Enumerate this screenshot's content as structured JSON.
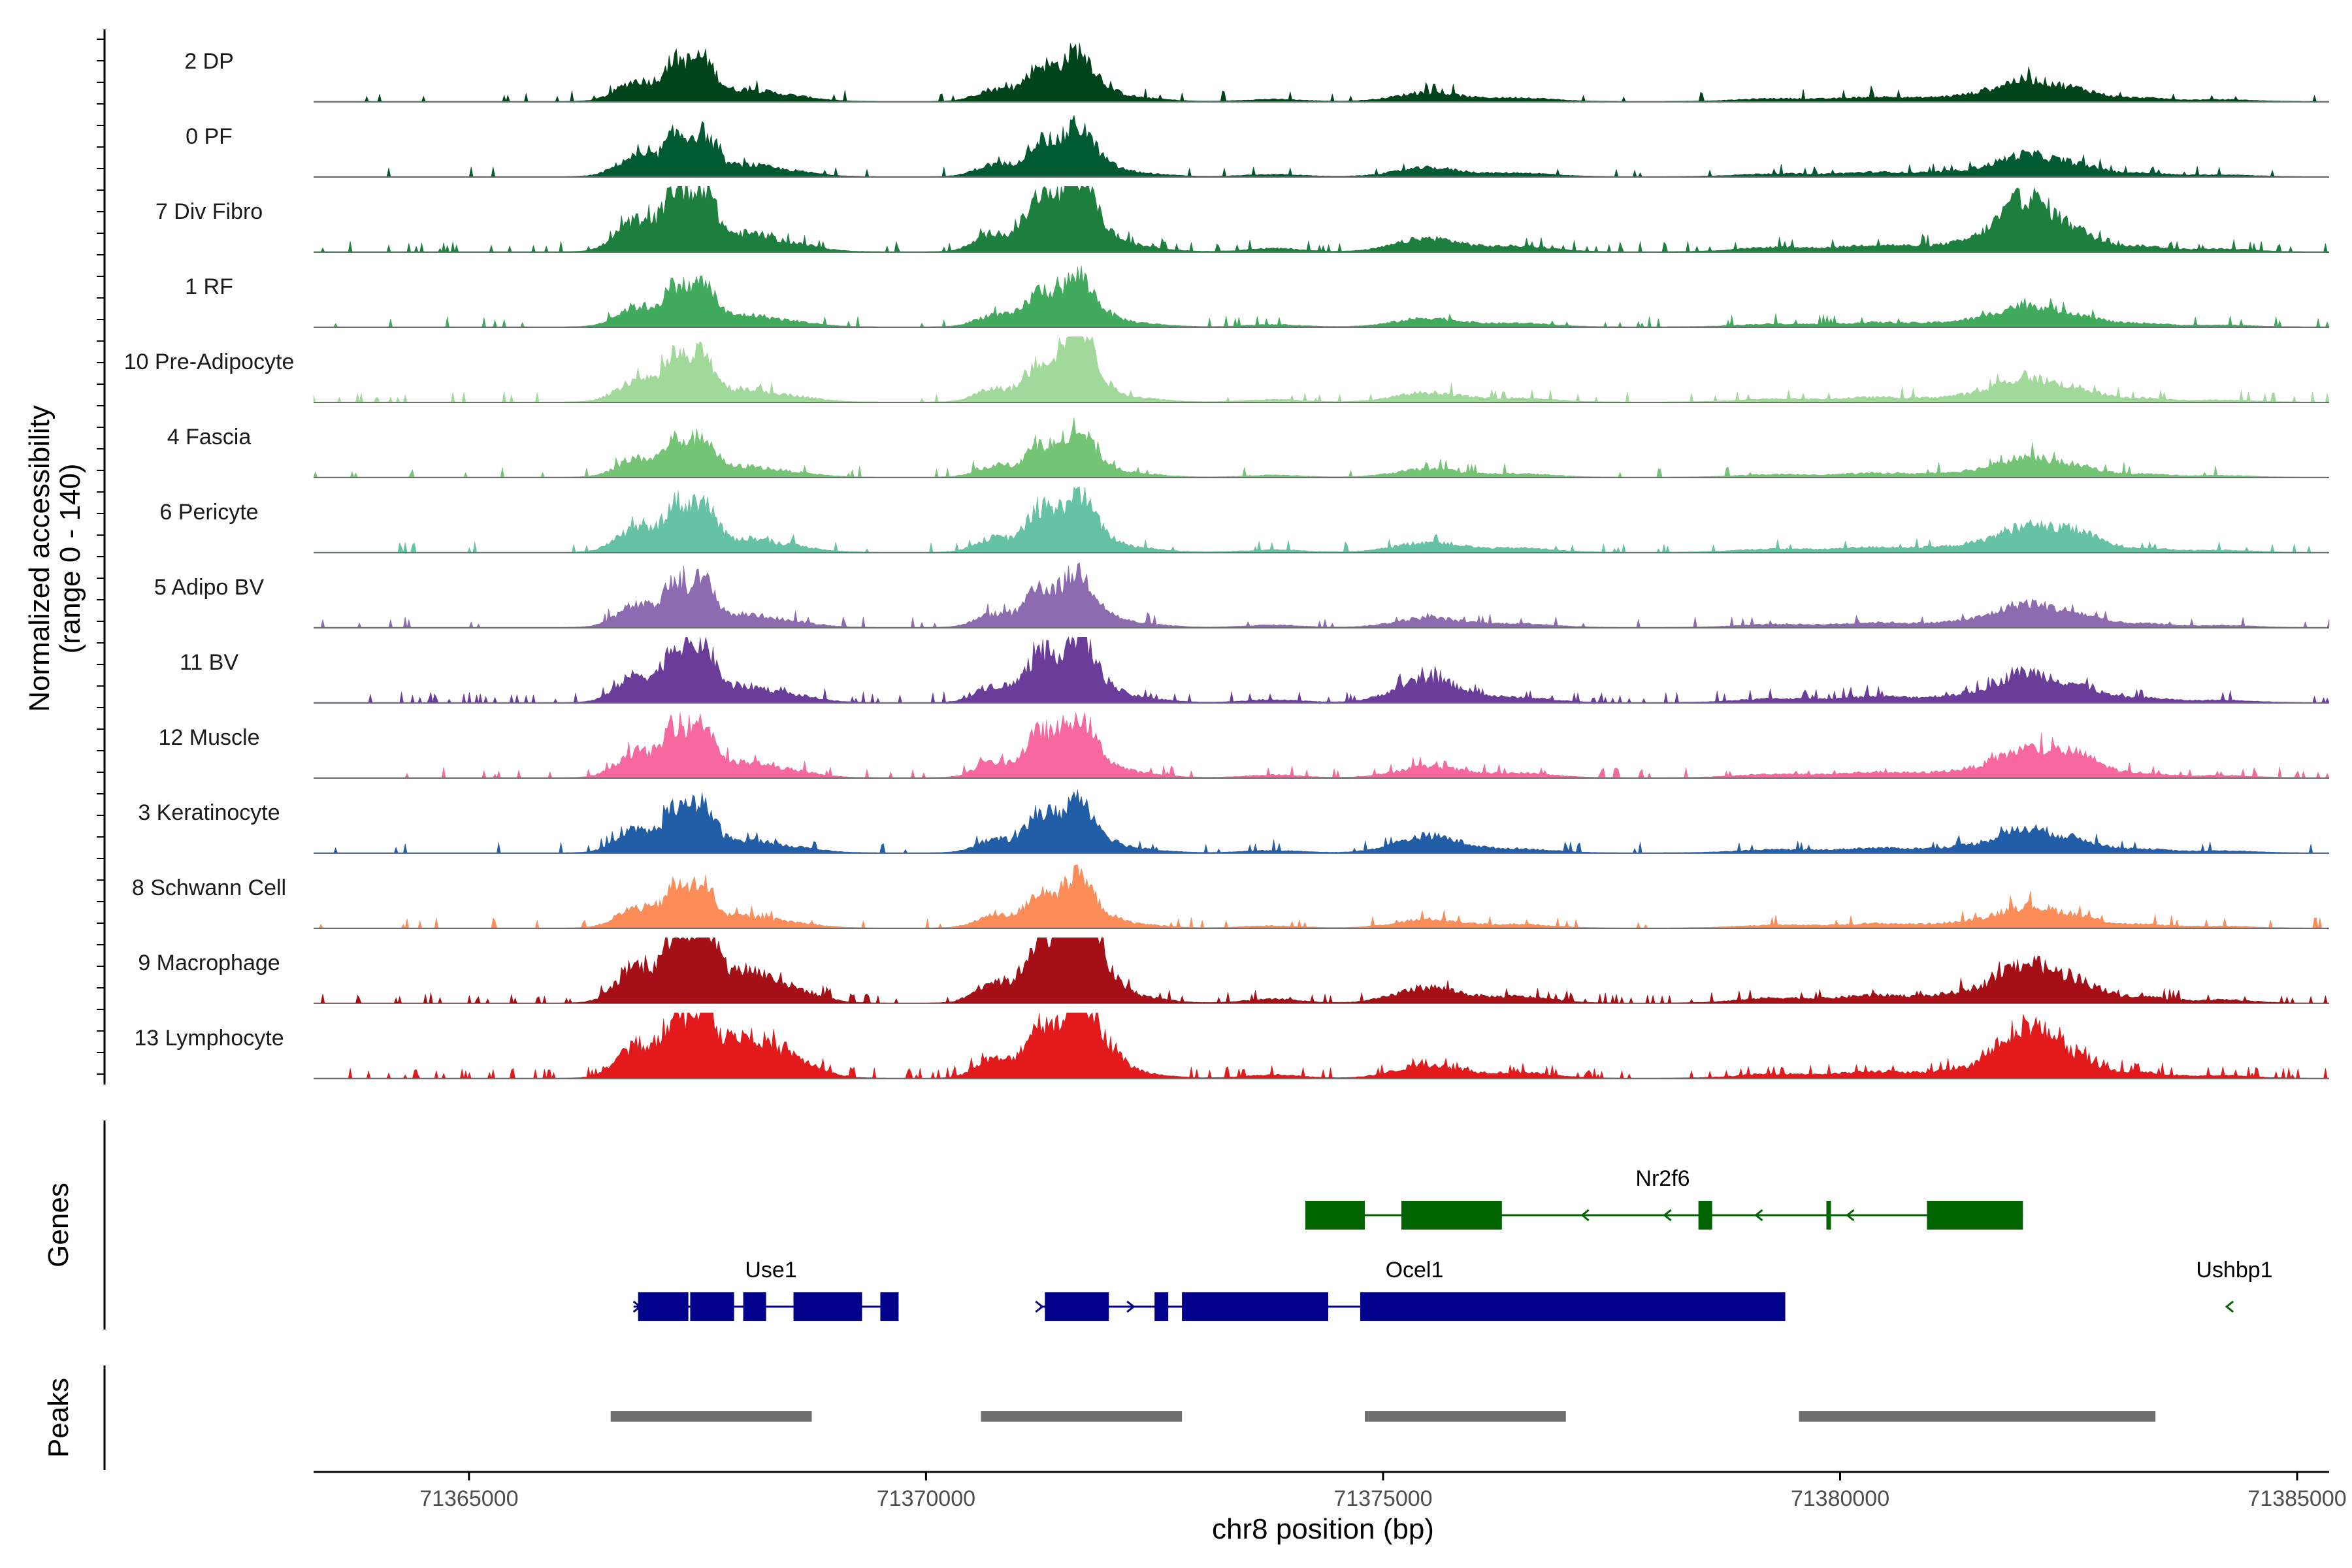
{
  "chart_data": {
    "type": "area",
    "title": "",
    "ylabel": "Normalized accessibility",
    "ylabel_range": "(range 0 - 140)",
    "ylim": [
      0,
      140
    ],
    "xlabel": "chr8 position (bp)",
    "xlim": [
      71363300,
      71385350
    ],
    "x_ticks": [
      71365000,
      71370000,
      71375000,
      71380000,
      71385000
    ],
    "x_tick_labels": [
      "71365000",
      "71370000",
      "71375000",
      "71380000",
      "71385000"
    ],
    "peak_regions": [
      [
        71367250,
        1.0,
        120
      ],
      [
        71367550,
        1.2,
        140
      ],
      [
        71366850,
        0.6,
        220
      ],
      [
        71368000,
        0.3,
        250
      ],
      [
        71368500,
        0.15,
        300
      ],
      [
        71370750,
        0.35,
        200
      ],
      [
        71371250,
        1.0,
        160
      ],
      [
        71371650,
        1.3,
        160
      ],
      [
        71371900,
        0.3,
        200
      ],
      [
        71372300,
        0.1,
        300
      ],
      [
        71373800,
        0.06,
        300
      ],
      [
        71375500,
        0.25,
        350
      ],
      [
        71376500,
        0.1,
        350
      ],
      [
        71379300,
        0.08,
        400
      ],
      [
        71380400,
        0.12,
        400
      ],
      [
        71381500,
        0.18,
        400
      ],
      [
        71382050,
        0.55,
        280
      ],
      [
        71382600,
        0.3,
        250
      ],
      [
        71383300,
        0.1,
        300
      ],
      [
        71384200,
        0.05,
        300
      ]
    ],
    "series": [
      {
        "name": "2 DP",
        "color": "#00441b",
        "peak_scale": 0.55,
        "noise": 0.05,
        "peak_overrides": {}
      },
      {
        "name": "0 PF",
        "color": "#005a32",
        "peak_scale": 0.55,
        "noise": 0.05,
        "peak_overrides": {}
      },
      {
        "name": "7 Div Fibro",
        "color": "#1d7f3d",
        "peak_scale": 0.85,
        "noise": 0.08,
        "peak_overrides": {
          "16": 1.7
        }
      },
      {
        "name": "1 RF",
        "color": "#41ab5d",
        "peak_scale": 0.55,
        "noise": 0.05,
        "peak_overrides": {}
      },
      {
        "name": "10 Pre-Adipocyte",
        "color": "#a1d99b",
        "peak_scale": 0.6,
        "noise": 0.07,
        "peak_overrides": {
          "7": 1.6
        }
      },
      {
        "name": "4 Fascia",
        "color": "#74c476",
        "peak_scale": 0.5,
        "noise": 0.05,
        "peak_overrides": {}
      },
      {
        "name": "6 Pericyte",
        "color": "#66c2a4",
        "peak_scale": 0.65,
        "noise": 0.07,
        "peak_overrides": {
          "17": 1.5
        }
      },
      {
        "name": "5 Adipo BV",
        "color": "#8c6bb1",
        "peak_scale": 0.6,
        "noise": 0.05,
        "peak_overrides": {}
      },
      {
        "name": "11 BV",
        "color": "#6a3d9a",
        "peak_scale": 0.75,
        "noise": 0.12,
        "peak_overrides": {
          "11": 2.0
        }
      },
      {
        "name": "12 Muscle",
        "color": "#f768a1",
        "peak_scale": 0.7,
        "noise": 0.08,
        "peak_overrides": {
          "17": 1.6
        }
      },
      {
        "name": "3 Keratinocyte",
        "color": "#225ea8",
        "peak_scale": 0.6,
        "noise": 0.07,
        "peak_overrides": {
          "11": 1.8
        }
      },
      {
        "name": "8 Schwann Cell",
        "color": "#fc8d59",
        "peak_scale": 0.55,
        "noise": 0.06,
        "peak_overrides": {}
      },
      {
        "name": "9 Macrophage",
        "color": "#a50f15",
        "peak_scale": 1.0,
        "noise": 0.12,
        "peak_overrides": {
          "3": 1.6,
          "4": 1.5,
          "7": 1.6,
          "8": 1.4
        }
      },
      {
        "name": "13 Lymphocyte",
        "color": "#e31a1c",
        "peak_scale": 0.85,
        "noise": 0.16,
        "peak_overrides": {
          "3": 2.4,
          "4": 2.4,
          "8": 2.0,
          "16": 1.7
        }
      }
    ],
    "genes_label": "Genes",
    "peaks_label": "Peaks",
    "genes": [
      {
        "name": "Nr2f6",
        "strand": "-",
        "row": 0,
        "color": "#006400",
        "start": 71374150,
        "end": 71382000,
        "exons": [
          [
            71374150,
            71374800
          ],
          [
            71375200,
            71376300
          ],
          [
            71378450,
            71378600
          ],
          [
            71379850,
            71379900
          ],
          [
            71380950,
            71382000
          ]
        ],
        "arrows": [
          71377200,
          71378100,
          71379100,
          71380100
        ]
      },
      {
        "name": "Use1",
        "strand": "+",
        "row": 1,
        "color": "#00008b",
        "start": 71366800,
        "end": 71369700,
        "exons": [
          [
            71366850,
            71367400
          ],
          [
            71367420,
            71367900
          ],
          [
            71368000,
            71368250
          ],
          [
            71368550,
            71369300
          ],
          [
            71369500,
            71369700
          ]
        ],
        "arrows": [
          71366850
        ]
      },
      {
        "name": "Ocel1",
        "strand": "+",
        "row": 1,
        "color": "#00008b",
        "start": 71371250,
        "end": 71379400,
        "exons": [
          [
            71371300,
            71372000
          ],
          [
            71372500,
            71372650
          ],
          [
            71372800,
            71374400
          ],
          [
            71374750,
            71379400
          ]
        ],
        "arrows": [
          71371250,
          71372250
        ]
      },
      {
        "name": "Ushbp1",
        "strand": "-",
        "row": 1,
        "color": "#006400",
        "start": 71384200,
        "end": 71384300,
        "exons": [],
        "arrows": [
          71384250
        ]
      }
    ],
    "peaks": [
      [
        71366550,
        71368750
      ],
      [
        71370600,
        71372800
      ],
      [
        71374800,
        71377000
      ],
      [
        71379550,
        71383450
      ]
    ],
    "peak_color": "#707070"
  }
}
